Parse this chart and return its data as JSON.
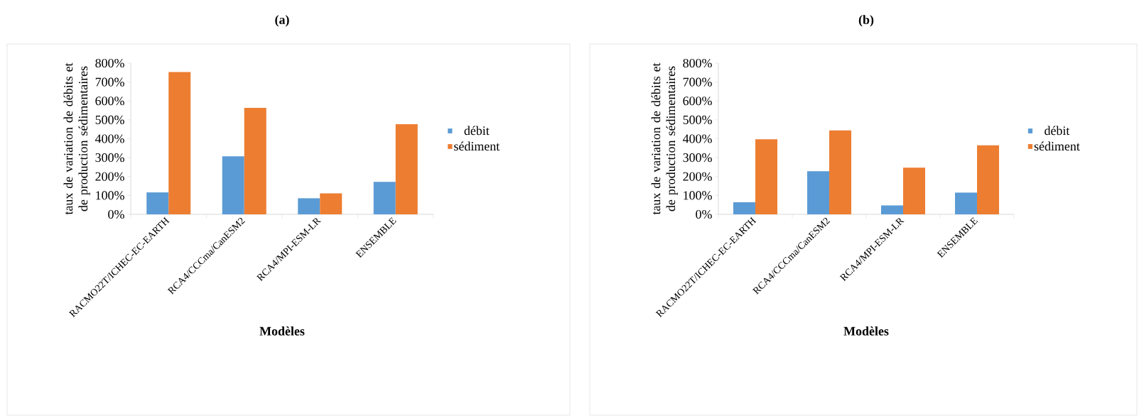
{
  "chart_data": [
    {
      "type": "bar",
      "title": "(a)",
      "xlabel": "Modèles",
      "ylabel": "taux de variation de débits et de production sédimentaires",
      "categories": [
        "RACMO22T/ICHEC-EC-EARTH",
        "RCA4/CCCma/CanESM2",
        "RCA4/MPI-ESM-LR",
        "ENSEMBLE"
      ],
      "series": [
        {
          "name": "débit",
          "color": "#5b9bd5",
          "values": [
            116,
            307,
            85,
            172
          ]
        },
        {
          "name": "sédiment",
          "color": "#ed7d31",
          "values": [
            753,
            563,
            111,
            477
          ]
        }
      ],
      "ylim": [
        0,
        800
      ],
      "yticks": [
        {
          "value": 0,
          "label": "0%"
        },
        {
          "value": 100,
          "label": "100%"
        },
        {
          "value": 200,
          "label": "200%"
        },
        {
          "value": 300,
          "label": "300%"
        },
        {
          "value": 400,
          "label": "400%"
        },
        {
          "value": 500,
          "label": "500%"
        },
        {
          "value": 600,
          "label": "600%"
        },
        {
          "value": 700,
          "label": "700%"
        },
        {
          "value": 800,
          "label": "800%"
        }
      ],
      "legend": "right"
    },
    {
      "type": "bar",
      "title": "(b)",
      "xlabel": "Modèles",
      "ylabel": "taux de variation de débits et de production sédimentaires",
      "categories": [
        "RACMO22T/ICHEC-EC-EARTH",
        "RCA4/CCCma/CanESM2",
        "RCA4/MPI-ESM-LR",
        "ENSEMBLE"
      ],
      "series": [
        {
          "name": "débit",
          "color": "#5b9bd5",
          "values": [
            64,
            228,
            47,
            115
          ]
        },
        {
          "name": "sédiment",
          "color": "#ed7d31",
          "values": [
            397,
            444,
            247,
            365
          ]
        }
      ],
      "ylim": [
        0,
        800
      ],
      "yticks": [
        {
          "value": 0,
          "label": "0%"
        },
        {
          "value": 100,
          "label": "100%"
        },
        {
          "value": 200,
          "label": "200%"
        },
        {
          "value": 300,
          "label": "300%"
        },
        {
          "value": 400,
          "label": "400%"
        },
        {
          "value": 500,
          "label": "500%"
        },
        {
          "value": 600,
          "label": "600%"
        },
        {
          "value": 700,
          "label": "700%"
        },
        {
          "value": 800,
          "label": "800%"
        }
      ],
      "legend": "right"
    }
  ]
}
